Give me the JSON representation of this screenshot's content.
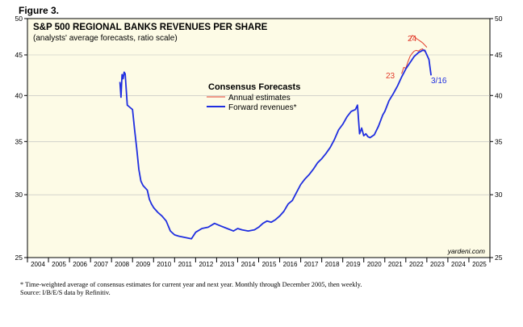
{
  "figure_label": "Figure 3.",
  "footnotes": {
    "line1": "*  Time-weighted average of consensus estimates for current year and next year. Monthly through December 2005, then weekly.",
    "line2": "Source: I/B/E/S data by Refinitiv."
  },
  "colors": {
    "background": "#fdfbe6",
    "forward": "#1f2ee0",
    "annual": "#e23a2a",
    "text": "#000000"
  },
  "chart_data": {
    "type": "line",
    "title": "S&P 500 REGIONAL BANKS REVENUES PER SHARE",
    "subtitle": "(analysts' average forecasts, ratio scale)",
    "legend_title": "Consensus Forecasts",
    "y_scale": "log",
    "ylim": [
      25,
      50
    ],
    "y_ticks": [
      25,
      30,
      35,
      40,
      45,
      50
    ],
    "xlim": [
      2004,
      2026
    ],
    "x_ticks": [
      "2004",
      "2005",
      "2006",
      "2007",
      "2008",
      "2009",
      "2010",
      "2011",
      "2012",
      "2013",
      "2014",
      "2015",
      "2016",
      "2017",
      "2018",
      "2019",
      "2020",
      "2021",
      "2022",
      "2023",
      "2024",
      "2025"
    ],
    "credit": "yardeni.com",
    "series": [
      {
        "name": "Annual estimates",
        "color": "#e23a2a",
        "segments": [
          {
            "label": "23",
            "x": [
              2021.8,
              2021.9,
              2022.0,
              2022.1,
              2022.2,
              2022.3,
              2022.4,
              2022.5,
              2022.6,
              2022.7,
              2022.8,
              2022.9
            ],
            "y": [
              42.6,
              43.4,
              43.3,
              44.1,
              44.8,
              45.2,
              45.5,
              45.6,
              45.5,
              45.7,
              45.8,
              45.4
            ]
          },
          {
            "label": "24",
            "x": [
              2022.2,
              2022.3,
              2022.4,
              2022.5,
              2022.6,
              2022.7,
              2022.8,
              2022.9,
              2023.0
            ],
            "y": [
              47.0,
              47.6,
              47.5,
              47.2,
              47.0,
              46.8,
              46.6,
              46.3,
              46.0
            ]
          }
        ]
      },
      {
        "name": "Forward revenues*",
        "color": "#1f2ee0",
        "end_label": "3/16",
        "x": [
          2008.4,
          2008.45,
          2008.5,
          2008.55,
          2008.6,
          2008.65,
          2008.75,
          2008.9,
          2009.0,
          2009.1,
          2009.2,
          2009.3,
          2009.4,
          2009.5,
          2009.6,
          2009.7,
          2009.8,
          2009.9,
          2010.0,
          2010.2,
          2010.4,
          2010.6,
          2010.8,
          2011.0,
          2011.2,
          2011.5,
          2011.8,
          2012.0,
          2012.3,
          2012.6,
          2012.9,
          2013.2,
          2013.5,
          2013.8,
          2014.0,
          2014.2,
          2014.5,
          2014.8,
          2015.0,
          2015.2,
          2015.4,
          2015.6,
          2015.8,
          2016.0,
          2016.2,
          2016.4,
          2016.6,
          2016.8,
          2017.0,
          2017.2,
          2017.4,
          2017.6,
          2017.8,
          2018.0,
          2018.2,
          2018.4,
          2018.6,
          2018.8,
          2019.0,
          2019.2,
          2019.4,
          2019.6,
          2019.7,
          2019.8,
          2019.9,
          2020.0,
          2020.1,
          2020.2,
          2020.3,
          2020.5,
          2020.7,
          2020.9,
          2021.0,
          2021.2,
          2021.4,
          2021.6,
          2021.8,
          2022.0,
          2022.2,
          2022.4,
          2022.6,
          2022.8,
          2022.9,
          2023.0,
          2023.1,
          2023.2
        ],
        "y": [
          41.6,
          39.8,
          42.5,
          42.0,
          42.8,
          42.6,
          38.9,
          38.6,
          38.4,
          36.2,
          34.3,
          32.3,
          31.2,
          30.8,
          30.6,
          30.4,
          29.6,
          29.2,
          28.9,
          28.5,
          28.2,
          27.8,
          27.0,
          26.7,
          26.6,
          26.5,
          26.4,
          26.9,
          27.2,
          27.3,
          27.6,
          27.4,
          27.2,
          27.0,
          27.2,
          27.1,
          27.0,
          27.1,
          27.3,
          27.6,
          27.8,
          27.7,
          27.9,
          28.2,
          28.6,
          29.2,
          29.5,
          30.2,
          30.9,
          31.4,
          31.8,
          32.3,
          32.9,
          33.3,
          33.8,
          34.4,
          35.2,
          36.2,
          36.8,
          37.6,
          38.2,
          38.4,
          38.9,
          35.8,
          36.4,
          35.6,
          35.8,
          35.5,
          35.4,
          35.7,
          36.6,
          37.8,
          38.2,
          39.4,
          40.2,
          41.1,
          42.2,
          43.2,
          44.0,
          44.8,
          45.3,
          45.6,
          45.6,
          45.0,
          44.4,
          42.4
        ]
      }
    ]
  }
}
